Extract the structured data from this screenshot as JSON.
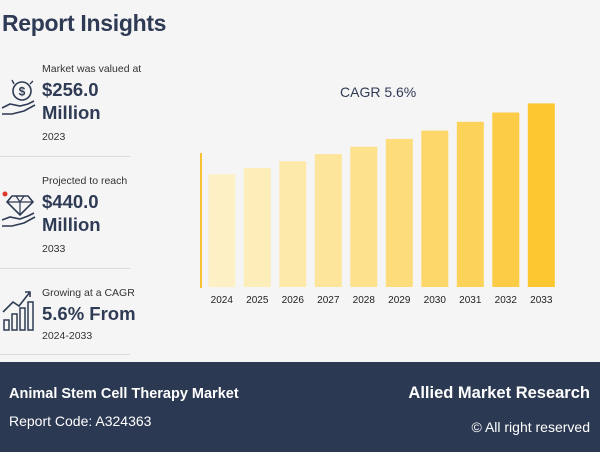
{
  "page_title": "Report Insights",
  "stats": [
    {
      "label": "Market was valued at",
      "value": "$256.0 Million",
      "year": "2023",
      "icon": "money-hand-icon"
    },
    {
      "label": "Projected to reach",
      "value": "$440.0 Million",
      "year": "2033",
      "icon": "diamond-hand-icon"
    },
    {
      "label": "Growing at a CAGR",
      "value": "5.6% From",
      "year": "2024-2033",
      "icon": "growth-bars-icon"
    }
  ],
  "chart_data": {
    "type": "bar",
    "title": "CAGR 5.6%",
    "categories": [
      "2024",
      "2025",
      "2026",
      "2027",
      "2028",
      "2029",
      "2030",
      "2031",
      "2032",
      "2033"
    ],
    "values": [
      270.3,
      285.5,
      301.5,
      318.4,
      336.2,
      355.0,
      374.9,
      395.9,
      418.1,
      440.0
    ],
    "ylim": [
      0,
      520
    ],
    "colors": [
      "#fdf0c5",
      "#fdedb8",
      "#fde9aa",
      "#fde59b",
      "#fde18c",
      "#fddc7b",
      "#fdd76a",
      "#fdd258",
      "#fdcc46",
      "#fcc730"
    ],
    "axis_color": "#f6c233"
  },
  "footer": {
    "market": "Animal Stem Cell Therapy Market",
    "code": "Report Code: A324363",
    "brand": "Allied Market Research",
    "rights": "© All right reserved"
  }
}
